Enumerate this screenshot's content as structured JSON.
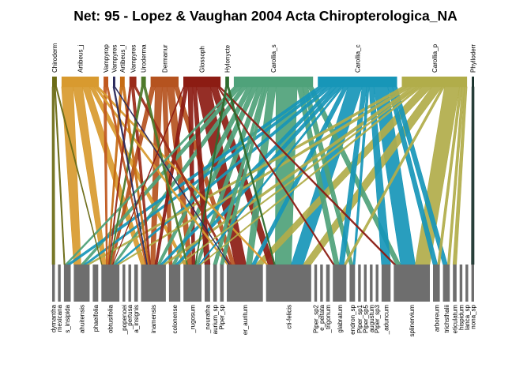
{
  "chart_data": {
    "type": "bipartite",
    "title": "Net: 95 - Lopez & Vaughan 2004 Acta Chiropterologica_NA",
    "higher": [
      {
        "label": "Chiroderm",
        "color": "#6B6B16",
        "weight": 1
      },
      {
        "label": "Artibeus_j",
        "color": "#D89A2F",
        "weight": 8
      },
      {
        "label": "Vampyrop",
        "color": "#C0581E",
        "weight": 1
      },
      {
        "label": "Vampyres",
        "color": "#2B2A5C",
        "weight": 0.5
      },
      {
        "label": "Artibeus_l",
        "color": "#C66C14",
        "weight": 1
      },
      {
        "label": "Vampyres",
        "color": "#9A2C1A",
        "weight": 1.5
      },
      {
        "label": "Uroderma",
        "color": "#4E7A2A",
        "weight": 1
      },
      {
        "label": "Dermanur",
        "color": "#B5531F",
        "weight": 6
      },
      {
        "label": "Glossoph",
        "color": "#8C1C13",
        "weight": 8
      },
      {
        "label": "Hylonycte",
        "color": "#2E6B2E",
        "weight": 0.8
      },
      {
        "label": "Carollia_s",
        "color": "#4FA27A",
        "weight": 17
      },
      {
        "label": "Carollia_c",
        "color": "#1796B8",
        "weight": 17
      },
      {
        "label": "Carollia_p",
        "color": "#B1AD4A",
        "weight": 14
      },
      {
        "label": "Phylloderr",
        "color": "#17302A",
        "weight": 0.5
      }
    ],
    "lower": [
      {
        "label": "dymantha",
        "weight": 0.6
      },
      {
        "label": "mexicana",
        "weight": 0.6
      },
      {
        "label": "s_insipida",
        "weight": 1.5
      },
      {
        "label": "ahuitensis",
        "weight": 3.5
      },
      {
        "label": "phaeifolia",
        "weight": 1.2
      },
      {
        "label": "obtusifolia",
        "weight": 4
      },
      {
        "label": "_popenoei",
        "weight": 0.6
      },
      {
        "label": "_pertusa",
        "weight": 0.6
      },
      {
        "label": "a_insignis",
        "weight": 0.8
      },
      {
        "label": "inamensis",
        "weight": 5.5
      },
      {
        "label": "colonense",
        "weight": 2.5
      },
      {
        "label": "_rugosum",
        "weight": 4
      },
      {
        "label": "_neuratha",
        "weight": 1.2
      },
      {
        "label": "aurium_sp",
        "weight": 0.8
      },
      {
        "label": "Piper_sp",
        "weight": 0.8
      },
      {
        "label": "er_auritum",
        "weight": 8
      },
      {
        "label": "cti-felicis",
        "weight": 10
      },
      {
        "label": "Piper_sp2",
        "weight": 0.6
      },
      {
        "label": "e_peltata",
        "weight": 0.6
      },
      {
        "label": "_trigonum",
        "weight": 0.8
      },
      {
        "label": "glabratum",
        "weight": 3
      },
      {
        "label": "endron_sp",
        "weight": 1.2
      },
      {
        "label": "Piper_sp1",
        "weight": 0.6
      },
      {
        "label": "Piper_sp5",
        "weight": 0.6
      },
      {
        "label": "augustum",
        "weight": 0.6
      },
      {
        "label": "Piper_sp3",
        "weight": 0.6
      },
      {
        "label": "_aduncum",
        "weight": 2
      },
      {
        "label": "splinervium",
        "weight": 8
      },
      {
        "label": "arboreum",
        "weight": 1.5
      },
      {
        "label": "trichsthalii",
        "weight": 1.5
      },
      {
        "label": "eticulatum",
        "weight": 0.8
      },
      {
        "label": "hispidum",
        "weight": 0.6
      },
      {
        "label": "lanca_sp",
        "weight": 0.6
      },
      {
        "label": "nona_sp",
        "weight": 0.6
      }
    ],
    "links": [
      [
        0,
        0,
        0.5
      ],
      [
        0,
        2,
        0.3
      ],
      [
        0,
        5,
        0.3
      ],
      [
        1,
        3,
        2.5
      ],
      [
        1,
        5,
        2
      ],
      [
        1,
        9,
        1.5
      ],
      [
        1,
        11,
        1
      ],
      [
        1,
        15,
        0.5
      ],
      [
        1,
        16,
        0.5
      ],
      [
        2,
        5,
        0.6
      ],
      [
        2,
        9,
        0.4
      ],
      [
        3,
        9,
        0.3
      ],
      [
        3,
        15,
        0.2
      ],
      [
        4,
        5,
        0.5
      ],
      [
        4,
        9,
        0.5
      ],
      [
        5,
        5,
        0.4
      ],
      [
        5,
        9,
        0.6
      ],
      [
        5,
        15,
        0.5
      ],
      [
        6,
        5,
        0.5
      ],
      [
        6,
        11,
        0.5
      ],
      [
        7,
        5,
        1
      ],
      [
        7,
        9,
        1.5
      ],
      [
        7,
        11,
        1.5
      ],
      [
        7,
        15,
        1
      ],
      [
        7,
        10,
        1
      ],
      [
        8,
        15,
        3
      ],
      [
        8,
        12,
        0.8
      ],
      [
        8,
        16,
        1.5
      ],
      [
        8,
        11,
        1
      ],
      [
        8,
        9,
        0.8
      ],
      [
        8,
        27,
        0.4
      ],
      [
        8,
        20,
        0.3
      ],
      [
        8,
        5,
        0.2
      ],
      [
        9,
        11,
        0.3
      ],
      [
        9,
        16,
        0.3
      ],
      [
        10,
        16,
        4
      ],
      [
        10,
        15,
        1.5
      ],
      [
        10,
        20,
        1
      ],
      [
        10,
        11,
        1
      ],
      [
        10,
        5,
        1
      ],
      [
        10,
        9,
        1
      ],
      [
        10,
        10,
        1
      ],
      [
        10,
        13,
        0.5
      ],
      [
        10,
        14,
        0.5
      ],
      [
        10,
        3,
        1
      ],
      [
        10,
        21,
        1
      ],
      [
        10,
        27,
        1
      ],
      [
        10,
        2,
        0.5
      ],
      [
        11,
        16,
        3
      ],
      [
        11,
        27,
        3
      ],
      [
        11,
        26,
        1
      ],
      [
        11,
        15,
        1
      ],
      [
        11,
        9,
        1
      ],
      [
        11,
        10,
        1
      ],
      [
        11,
        5,
        1
      ],
      [
        11,
        11,
        0.5
      ],
      [
        11,
        20,
        1
      ],
      [
        11,
        3,
        1
      ],
      [
        11,
        2,
        1
      ],
      [
        11,
        21,
        0.5
      ],
      [
        11,
        28,
        1
      ],
      [
        11,
        29,
        1
      ],
      [
        12,
        27,
        3
      ],
      [
        12,
        16,
        2
      ],
      [
        12,
        15,
        2
      ],
      [
        12,
        3,
        1
      ],
      [
        12,
        5,
        1
      ],
      [
        12,
        9,
        1
      ],
      [
        12,
        10,
        0.5
      ],
      [
        12,
        11,
        0.5
      ],
      [
        12,
        20,
        0.5
      ],
      [
        12,
        28,
        0.5
      ],
      [
        12,
        29,
        0.5
      ],
      [
        12,
        30,
        0.5
      ],
      [
        13,
        33,
        0.5
      ]
    ]
  }
}
